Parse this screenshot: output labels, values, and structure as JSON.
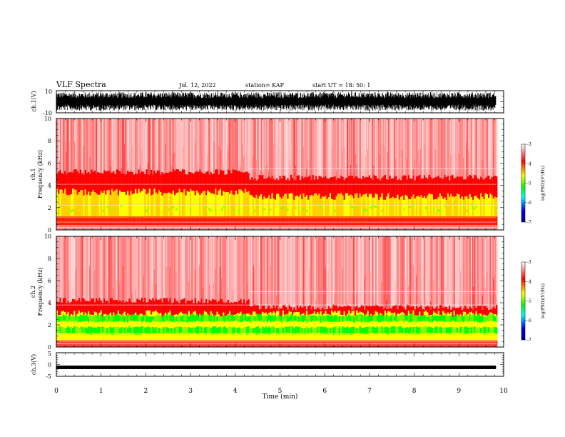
{
  "header": {
    "title": "VLF Spectra",
    "date": "Jul. 12, 2022",
    "station": "station= KAP",
    "start": "start UT = 18: 50: 1"
  },
  "colorbar": {
    "label": "log(PSD)(V²/Hz)",
    "ticks": [
      "-3",
      "-4",
      "-5",
      "-6",
      "-7"
    ],
    "colors": [
      "#000080",
      "#0000ff",
      "#00ffff",
      "#00ff00",
      "#ffff00",
      "#ff0000",
      "#ffffff"
    ]
  },
  "chart_data": [
    {
      "type": "line",
      "panel": "ch1-waveform",
      "ylabel": "ch.1(V)",
      "ylim": [
        -10,
        10
      ],
      "yticks": [
        "10",
        "-10"
      ],
      "xlim": [
        0,
        10
      ],
      "x": [
        0,
        9.83
      ],
      "trace": "dense oscillating waveform spanning approx -9 to 9 V"
    },
    {
      "type": "heatmap",
      "panel": "ch1-spectrogram",
      "ylabel": "ch.1 Frequency (kHz)",
      "ylim": [
        0,
        10
      ],
      "yticks": [
        "0",
        "2",
        "4",
        "6",
        "8",
        "10"
      ],
      "xlim": [
        0,
        10
      ],
      "x_extent": [
        0,
        9.83
      ],
      "zlim": [
        -7,
        -3
      ],
      "bands": [
        {
          "t_start": 0,
          "t_end": 4.3,
          "f_high_kHz": 5.2,
          "f_yellow_kHz": 3.4
        },
        {
          "t_start": 4.3,
          "t_end": 9.83,
          "f_high_kHz": 4.7,
          "f_yellow_kHz": 3.0
        }
      ]
    },
    {
      "type": "heatmap",
      "panel": "ch2-spectrogram",
      "ylabel": "ch.2 Frequency (kHz)",
      "ylim": [
        0,
        10
      ],
      "yticks": [
        "0",
        "2",
        "4",
        "6",
        "8",
        "10"
      ],
      "xlim": [
        0,
        10
      ],
      "x_extent": [
        0,
        9.83
      ],
      "zlim": [
        -7,
        -3
      ],
      "bands": [
        {
          "t_start": 0,
          "t_end": 4.3,
          "f_high_kHz": 4.2,
          "f_green_kHz": 3.0
        },
        {
          "t_start": 4.3,
          "t_end": 9.83,
          "f_high_kHz": 3.6,
          "f_green_kHz": 3.0
        }
      ]
    },
    {
      "type": "line",
      "panel": "ch3-waveform",
      "ylabel": "ch.3(V)",
      "ylim": [
        -5,
        5
      ],
      "yticks": [
        "5",
        "0",
        "-5"
      ],
      "xlim": [
        0,
        10
      ],
      "x": [
        0,
        9.83
      ],
      "level_v": -1.2
    }
  ],
  "xaxis": {
    "label": "Time (min)",
    "ticks": [
      "0",
      "1",
      "2",
      "3",
      "4",
      "5",
      "6",
      "7",
      "8",
      "9",
      "10"
    ]
  }
}
